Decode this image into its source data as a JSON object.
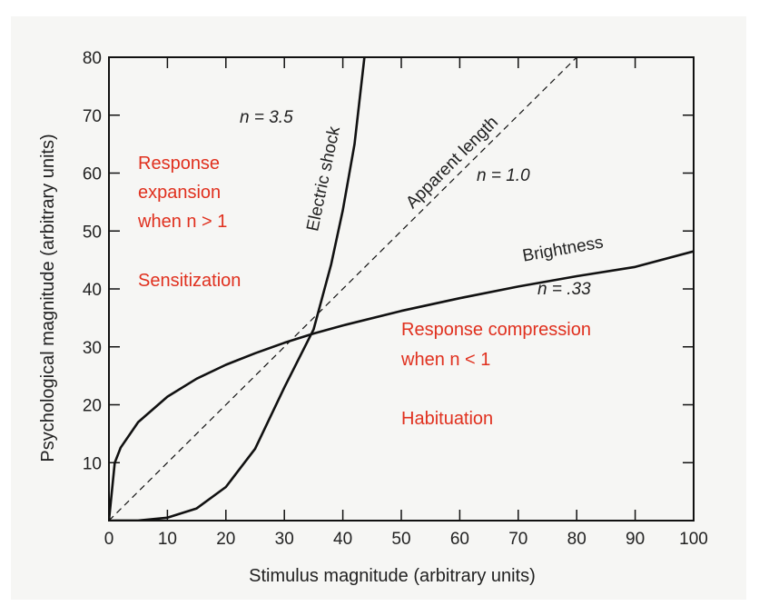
{
  "chart_data": {
    "type": "line",
    "xlabel": "Stimulus magnitude (arbitrary units)",
    "ylabel": "Psychological magnitude (arbitrary units)",
    "xlim": [
      0,
      100
    ],
    "ylim": [
      0,
      80
    ],
    "x_ticks": [
      "0",
      "10",
      "20",
      "30",
      "40",
      "50",
      "60",
      "70",
      "80",
      "90",
      "100"
    ],
    "y_ticks": [
      "10",
      "20",
      "30",
      "40",
      "50",
      "60",
      "70",
      "80"
    ],
    "grid": false,
    "series": [
      {
        "name": "Electric shock",
        "exponent_label": "n = 3.5",
        "x": [
          0,
          5,
          10,
          15,
          20,
          25,
          30,
          35,
          38,
          40,
          42,
          43.7
        ],
        "y": [
          0,
          0.02,
          0.5,
          2.1,
          5.8,
          12.4,
          23.0,
          33.0,
          44.2,
          53.6,
          65.0,
          80
        ]
      },
      {
        "name": "Apparent length",
        "exponent_label": "n = 1.0",
        "style": "dashed",
        "x": [
          0,
          80
        ],
        "y": [
          0,
          80
        ]
      },
      {
        "name": "Brightness",
        "exponent_label": "n = .33",
        "x": [
          0,
          1,
          2,
          5,
          10,
          15,
          20,
          25,
          30,
          35,
          40,
          50,
          60,
          70,
          80,
          90,
          100
        ],
        "y": [
          0,
          10.0,
          12.6,
          17.0,
          21.4,
          24.5,
          26.9,
          28.9,
          30.7,
          32.3,
          33.7,
          36.2,
          38.4,
          40.4,
          42.2,
          43.8,
          46.5
        ]
      }
    ],
    "annotations": [
      {
        "lines": [
          "Response",
          "expansion",
          "when n > 1"
        ]
      },
      {
        "lines": [
          "Sensitization"
        ]
      },
      {
        "lines": [
          "Response compression",
          "when n < 1"
        ]
      },
      {
        "lines": [
          "Habituation"
        ]
      }
    ]
  }
}
